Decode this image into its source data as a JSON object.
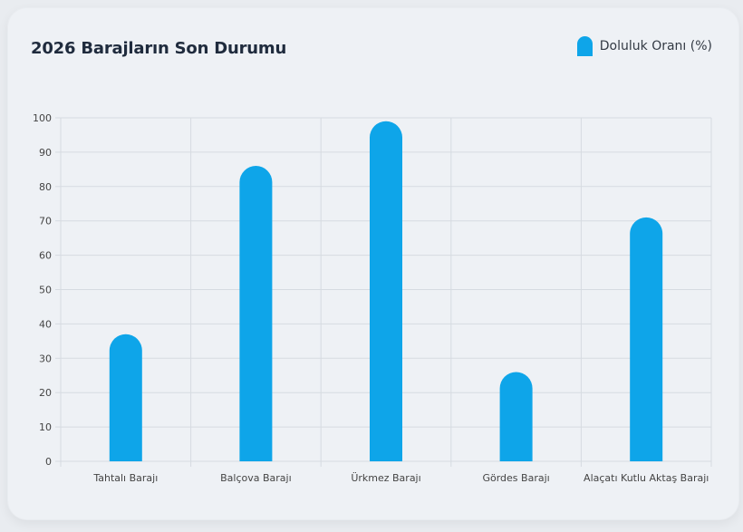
{
  "chart_data": {
    "type": "bar",
    "title": "2026 Barajların Son Durumu",
    "categories": [
      "Tahtalı Barajı",
      "Balçova Barajı",
      "Ürkmez Barajı",
      "Gördes Barajı",
      "Alaçatı Kutlu Aktaş Barajı"
    ],
    "series": [
      {
        "name": "Doluluk Oranı (%)",
        "values": [
          37,
          86,
          99,
          26,
          71
        ]
      }
    ],
    "ylim": [
      0,
      100
    ],
    "yticks": [
      0,
      10,
      20,
      30,
      40,
      50,
      60,
      70,
      80,
      90,
      100
    ],
    "grid": true,
    "legend_position": "top-right",
    "colors": {
      "bar": "#0ea5e9",
      "grid": "#d6dbe1",
      "axis_text": "#444444"
    }
  }
}
